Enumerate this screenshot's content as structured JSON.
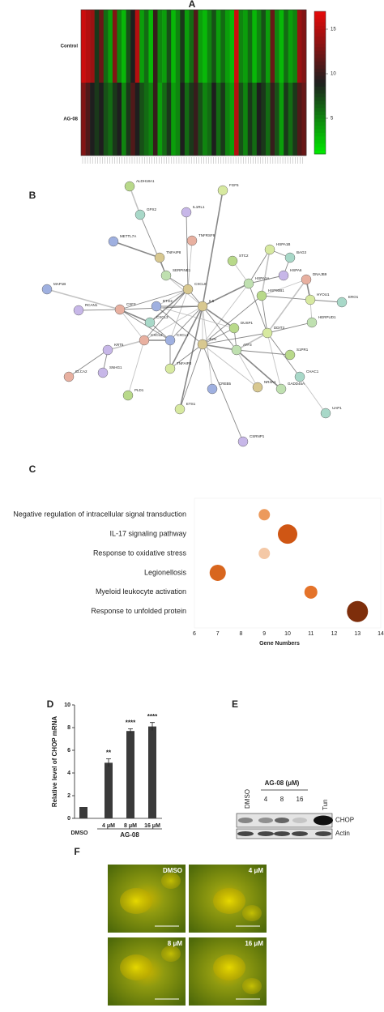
{
  "panel_labels": [
    "A",
    "B",
    "C",
    "D",
    "E",
    "F"
  ],
  "chart_data": [
    {
      "type": "heatmap",
      "rows": [
        "Control",
        "AG-08"
      ],
      "values": [
        [
          16,
          15,
          14,
          8,
          12,
          6,
          4,
          13,
          5,
          3,
          7,
          9,
          15,
          4,
          6,
          3,
          10,
          5,
          4,
          7,
          3,
          5,
          8,
          4,
          6,
          11,
          4,
          3,
          5,
          7,
          4,
          6,
          4,
          3,
          16,
          5,
          4,
          6,
          3,
          5,
          7,
          4,
          12,
          5,
          3,
          6,
          4,
          5,
          14,
          13
        ],
        [
          13,
          11,
          9,
          8,
          9,
          7,
          6,
          8,
          9,
          5,
          8,
          11,
          9,
          7,
          6,
          5,
          10,
          4,
          6,
          8,
          4,
          5,
          9,
          6,
          8,
          10,
          7,
          5,
          6,
          9,
          6,
          8,
          5,
          4,
          15,
          7,
          5,
          8,
          6,
          9,
          8,
          6,
          10,
          7,
          4,
          8,
          6,
          8,
          11,
          12
        ]
      ],
      "zlim": [
        1,
        17
      ],
      "zticks": [
        5,
        10,
        15
      ]
    },
    {
      "type": "bubble",
      "categories": [
        "Negative regulation of intracellular signal transduction",
        "IL-17 signaling pathway",
        "Response to oxidative stress",
        "Legionellosis",
        "Myeloid leukocyte activation",
        "Response to unfolded protein"
      ],
      "values": [
        9,
        10,
        9,
        7,
        11,
        13
      ],
      "sizes": [
        7,
        12,
        7,
        10,
        8,
        13
      ],
      "colors": [
        "#ec9a5c",
        "#cf5614",
        "#f4c8a6",
        "#d8661e",
        "#e4732a",
        "#7e2e0b"
      ],
      "xlim": [
        6,
        14
      ],
      "xticks": [
        6,
        7,
        8,
        9,
        10,
        11,
        12,
        13,
        14
      ],
      "xlabel": "Gene Numbers"
    },
    {
      "type": "bar",
      "categories": [
        "DMSO",
        "4 μM",
        "8 μM",
        "16 μM"
      ],
      "values": [
        1,
        4.9,
        7.7,
        8.1
      ],
      "errors": [
        0,
        0.35,
        0.2,
        0.35
      ],
      "significance": [
        null,
        "**",
        "****",
        "****"
      ],
      "group_label": "AG-08",
      "ylabel": "Relative level of  CHOP mRNA",
      "ylim": [
        0,
        10
      ],
      "yticks": [
        0,
        2,
        4,
        6,
        8,
        10
      ],
      "color": "#3a3a3a"
    }
  ],
  "network": {
    "nodes": [
      "ALDH18A1",
      "FGF5",
      "GPX2",
      "IL1RL1",
      "TNFRSF9",
      "METTL7A",
      "TNFAIP8",
      "SERPINE1",
      "STC2",
      "HSPA1B",
      "BAG3",
      "HSPA6",
      "DNAJB9",
      "MAP1B",
      "CXCL8",
      "HSPA1A",
      "HSP90B1",
      "HYOU1",
      "ERO1",
      "RCAN1",
      "CSF3",
      "BTG2",
      "IL6",
      "HERPUD1",
      "DUSP1",
      "DDIT3",
      "CXCL3",
      "KRT5",
      "CXCL2",
      "CXCL1",
      "JUN",
      "ATF3",
      "S1PR1",
      "TNFAIP3",
      "CHAC1",
      "SNHG1",
      "CLCA2",
      "CREB5",
      "NR4A1",
      "GADD45A",
      "PLD1",
      "ETS1",
      "UAP1",
      "CSRNP1"
    ]
  },
  "blot": {
    "group_label": "AG-08 (μM)",
    "lanes": [
      "DMSO",
      "4",
      "8",
      "16",
      "Tun"
    ],
    "rows": [
      "CHOP",
      "Actin"
    ]
  },
  "microscopy": {
    "panels": [
      "DMSO",
      "4 μM",
      "8 μM",
      "16 μM"
    ]
  }
}
